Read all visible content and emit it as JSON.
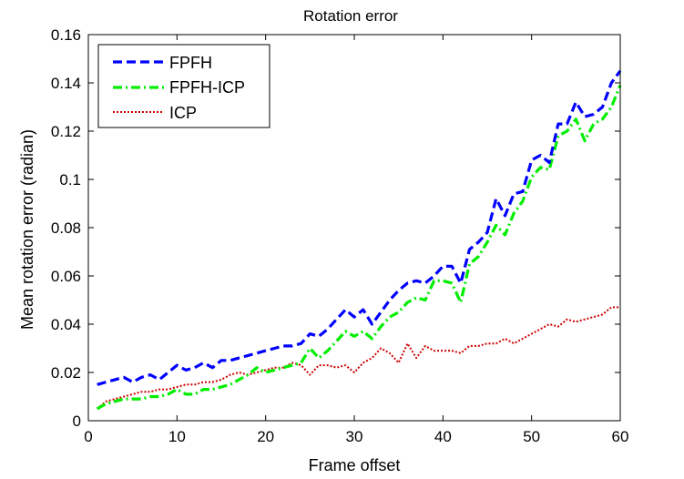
{
  "chart_data": {
    "type": "line",
    "title": "Rotation error",
    "xlabel": "Frame offset",
    "ylabel": "Mean rotation error (radian)",
    "xlim": [
      0,
      60
    ],
    "ylim": [
      0,
      0.16
    ],
    "xticks": [
      0,
      10,
      20,
      30,
      40,
      50,
      60
    ],
    "yticks": [
      0,
      0.02,
      0.04,
      0.06,
      0.08,
      0.1,
      0.12,
      0.14,
      0.16
    ],
    "xtick_labels": [
      "0",
      "10",
      "20",
      "30",
      "40",
      "50",
      "60"
    ],
    "ytick_labels": [
      "0",
      "0.02",
      "0.04",
      "0.06",
      "0.08",
      "0.1",
      "0.12",
      "0.14",
      "0.16"
    ],
    "grid": false,
    "legend_position": "top-left",
    "x": [
      1,
      2,
      3,
      4,
      5,
      6,
      7,
      8,
      9,
      10,
      11,
      12,
      13,
      14,
      15,
      16,
      17,
      18,
      19,
      20,
      21,
      22,
      23,
      24,
      25,
      26,
      27,
      28,
      29,
      30,
      31,
      32,
      33,
      34,
      35,
      36,
      37,
      38,
      39,
      40,
      41,
      42,
      43,
      44,
      45,
      46,
      47,
      48,
      49,
      50,
      51,
      52,
      53,
      54,
      55,
      56,
      57,
      58,
      59,
      60
    ],
    "series": [
      {
        "name": "FPFH",
        "color": "#0000ff",
        "style": "dashed",
        "values": [
          0.015,
          0.016,
          0.017,
          0.018,
          0.016,
          0.018,
          0.019,
          0.017,
          0.02,
          0.023,
          0.021,
          0.022,
          0.024,
          0.022,
          0.025,
          0.025,
          0.026,
          0.027,
          0.028,
          0.029,
          0.03,
          0.031,
          0.031,
          0.032,
          0.036,
          0.035,
          0.038,
          0.042,
          0.046,
          0.043,
          0.046,
          0.04,
          0.045,
          0.05,
          0.054,
          0.057,
          0.058,
          0.057,
          0.06,
          0.064,
          0.064,
          0.057,
          0.071,
          0.074,
          0.078,
          0.092,
          0.085,
          0.094,
          0.095,
          0.108,
          0.11,
          0.107,
          0.123,
          0.123,
          0.132,
          0.126,
          0.127,
          0.13,
          0.14,
          0.145
        ]
      },
      {
        "name": "FPFH-ICP",
        "color": "#00ee00",
        "style": "dashdot",
        "values": [
          0.005,
          0.007,
          0.008,
          0.009,
          0.009,
          0.009,
          0.01,
          0.01,
          0.011,
          0.013,
          0.011,
          0.011,
          0.013,
          0.013,
          0.014,
          0.015,
          0.017,
          0.019,
          0.022,
          0.02,
          0.021,
          0.022,
          0.023,
          0.024,
          0.03,
          0.026,
          0.029,
          0.033,
          0.037,
          0.035,
          0.037,
          0.034,
          0.039,
          0.043,
          0.045,
          0.049,
          0.051,
          0.05,
          0.058,
          0.058,
          0.057,
          0.049,
          0.065,
          0.068,
          0.074,
          0.081,
          0.077,
          0.086,
          0.091,
          0.101,
          0.105,
          0.104,
          0.118,
          0.12,
          0.125,
          0.116,
          0.123,
          0.125,
          0.13,
          0.139
        ]
      },
      {
        "name": "ICP",
        "color": "#cc0000",
        "style": "dotted",
        "values": [
          0.005,
          0.008,
          0.009,
          0.01,
          0.011,
          0.012,
          0.012,
          0.013,
          0.013,
          0.014,
          0.015,
          0.015,
          0.016,
          0.016,
          0.017,
          0.019,
          0.02,
          0.019,
          0.02,
          0.021,
          0.022,
          0.022,
          0.024,
          0.023,
          0.019,
          0.023,
          0.023,
          0.022,
          0.023,
          0.02,
          0.024,
          0.026,
          0.03,
          0.028,
          0.024,
          0.032,
          0.026,
          0.031,
          0.029,
          0.029,
          0.029,
          0.028,
          0.031,
          0.031,
          0.032,
          0.032,
          0.034,
          0.032,
          0.034,
          0.036,
          0.038,
          0.04,
          0.039,
          0.042,
          0.041,
          0.042,
          0.043,
          0.044,
          0.047,
          0.047
        ]
      }
    ]
  }
}
